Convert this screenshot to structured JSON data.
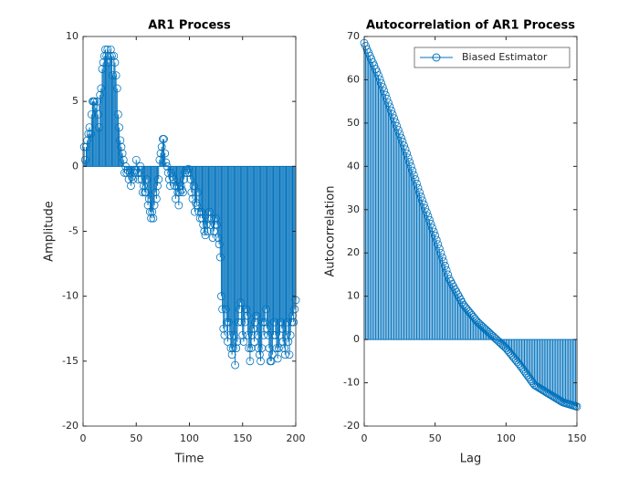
{
  "chart_data": [
    {
      "type": "stem",
      "title": "AR1 Process",
      "xlabel": "Time",
      "ylabel": "Amplitude",
      "xlim": [
        0,
        200
      ],
      "ylim": [
        -20,
        10
      ],
      "xticks": [
        0,
        50,
        100,
        150,
        200
      ],
      "yticks": [
        -20,
        -15,
        -10,
        -5,
        0,
        5,
        10
      ],
      "x": [
        1,
        2,
        3,
        4,
        5,
        6,
        7,
        8,
        9,
        10,
        11,
        12,
        13,
        14,
        15,
        16,
        17,
        18,
        19,
        20,
        21,
        22,
        23,
        24,
        25,
        26,
        27,
        28,
        29,
        30,
        31,
        32,
        33,
        34,
        35,
        36,
        37,
        38,
        39,
        40,
        41,
        42,
        43,
        44,
        45,
        46,
        47,
        48,
        49,
        50,
        51,
        52,
        53,
        54,
        55,
        56,
        57,
        58,
        59,
        60,
        61,
        62,
        63,
        64,
        65,
        66,
        67,
        68,
        69,
        70,
        71,
        72,
        73,
        74,
        75,
        76,
        77,
        78,
        79,
        80,
        81,
        82,
        83,
        84,
        85,
        86,
        87,
        88,
        89,
        90,
        91,
        92,
        93,
        94,
        95,
        96,
        97,
        98,
        99,
        100,
        101,
        102,
        103,
        104,
        105,
        106,
        107,
        108,
        109,
        110,
        111,
        112,
        113,
        114,
        115,
        116,
        117,
        118,
        119,
        120,
        121,
        122,
        123,
        124,
        125,
        126,
        127,
        128,
        129,
        130,
        131,
        132,
        133,
        134,
        135,
        136,
        137,
        138,
        139,
        140,
        141,
        142,
        143,
        144,
        145,
        146,
        147,
        148,
        149,
        150,
        151,
        152,
        153,
        154,
        155,
        156,
        157,
        158,
        159,
        160,
        161,
        162,
        163,
        164,
        165,
        166,
        167,
        168,
        169,
        170,
        171,
        172,
        173,
        174,
        175,
        176,
        177,
        178,
        179,
        180,
        181,
        182,
        183,
        184,
        185,
        186,
        187,
        188,
        189,
        190,
        191,
        192,
        193,
        194,
        195,
        196,
        197,
        198,
        199,
        200
      ],
      "series": [
        {
          "color": "#0072bd",
          "values": [
            1.5,
            0.5,
            1.5,
            2,
            2.5,
            3,
            2.5,
            4,
            5,
            5,
            5,
            4.5,
            5,
            4,
            3,
            5.5,
            6,
            7.5,
            8,
            8.5,
            9,
            8.5,
            9,
            8,
            8.5,
            9,
            8.5,
            7,
            8.5,
            8,
            7,
            6,
            4,
            3,
            2,
            1.5,
            1,
            0.5,
            -0.5,
            0,
            -0.5,
            -0.3,
            -1,
            -0.5,
            -1.5,
            -0.8,
            -1,
            -0.5,
            -0.3,
            0.5,
            -0.5,
            -1,
            -0.5,
            0,
            -1,
            -2,
            -1.5,
            -2,
            -2,
            -1,
            -3,
            -2.5,
            -3.5,
            -4,
            -3.5,
            -4,
            -3,
            -2,
            -2.5,
            -1.5,
            -1,
            0.5,
            1,
            1.5,
            2.1,
            2.1,
            1,
            0.3,
            0,
            -0.5,
            -1,
            -1.5,
            -0.5,
            -0.8,
            -1,
            -1.5,
            -2.5,
            -1.5,
            -2,
            -3,
            -2,
            -1.5,
            -1.8,
            -2,
            -1,
            -0.5,
            -0.3,
            -0.5,
            -0.2,
            -0.5,
            -1,
            -2,
            -2.5,
            -1.5,
            -3.5,
            -2.8,
            -3,
            -2,
            -3.5,
            -4,
            -3.5,
            -4,
            -4.5,
            -5,
            -5.3,
            -4.5,
            -5,
            -4,
            -3.5,
            -4.5,
            -4,
            -5.5,
            -5,
            -4.5,
            -4,
            -4.5,
            -5.5,
            -6,
            -7,
            -10,
            -11,
            -12.5,
            -13,
            -11,
            -12,
            -13.5,
            -12,
            -13,
            -14,
            -14.5,
            -14,
            -13,
            -15.3,
            -14,
            -13.5,
            -12,
            -11,
            -10.5,
            -12,
            -13,
            -13.5,
            -12,
            -11,
            -11.5,
            -13,
            -14,
            -15,
            -14,
            -13,
            -12.5,
            -13.5,
            -12,
            -11.5,
            -13,
            -14,
            -14.5,
            -15,
            -14,
            -12,
            -13,
            -12,
            -11,
            -12.5,
            -13,
            -14,
            -15,
            -15,
            -14.5,
            -13,
            -12,
            -13,
            -14,
            -14.8,
            -14,
            -13,
            -12,
            -12.5,
            -13.5,
            -14,
            -14.5,
            -13,
            -12,
            -13.5,
            -14.5,
            -13,
            -12,
            -11.5,
            -12,
            -11,
            -10.3
          ]
        }
      ]
    },
    {
      "type": "stem",
      "title": "Autocorrelation of AR1 Process",
      "xlabel": "Lag",
      "ylabel": "Autocorrelation",
      "xlim": [
        0,
        150
      ],
      "ylim": [
        -20,
        70
      ],
      "xticks": [
        0,
        50,
        100,
        150
      ],
      "yticks": [
        -20,
        -10,
        0,
        10,
        20,
        30,
        40,
        50,
        60,
        70
      ],
      "legend": "northeast",
      "x": [
        0,
        1,
        2,
        3,
        4,
        5,
        6,
        7,
        8,
        9,
        10,
        11,
        12,
        13,
        14,
        15,
        16,
        17,
        18,
        19,
        20,
        21,
        22,
        23,
        24,
        25,
        26,
        27,
        28,
        29,
        30,
        31,
        32,
        33,
        34,
        35,
        36,
        37,
        38,
        39,
        40,
        41,
        42,
        43,
        44,
        45,
        46,
        47,
        48,
        49,
        50,
        51,
        52,
        53,
        54,
        55,
        56,
        57,
        58,
        59,
        60,
        61,
        62,
        63,
        64,
        65,
        66,
        67,
        68,
        69,
        70,
        71,
        72,
        73,
        74,
        75,
        76,
        77,
        78,
        79,
        80,
        81,
        82,
        83,
        84,
        85,
        86,
        87,
        88,
        89,
        90,
        91,
        92,
        93,
        94,
        95,
        96,
        97,
        98,
        99,
        100,
        101,
        102,
        103,
        104,
        105,
        106,
        107,
        108,
        109,
        110,
        111,
        112,
        113,
        114,
        115,
        116,
        117,
        118,
        119,
        120,
        121,
        122,
        123,
        124,
        125,
        126,
        127,
        128,
        129,
        130,
        131,
        132,
        133,
        134,
        135,
        136,
        137,
        138,
        139,
        140,
        141,
        142,
        143,
        144,
        145,
        146,
        147,
        148,
        149,
        150
      ],
      "series": [
        {
          "name": "Biased Estimator",
          "color": "#0072bd",
          "values": [
            68.5,
            67.8,
            67,
            66.3,
            65.5,
            64.8,
            64,
            63.3,
            62.5,
            61.8,
            61,
            60.1,
            59.2,
            58.3,
            57.4,
            56.5,
            55.6,
            54.7,
            53.8,
            52.9,
            52,
            51.1,
            50.2,
            49.3,
            48.4,
            47.5,
            46.6,
            45.7,
            44.8,
            43.9,
            43,
            42,
            41,
            40,
            39,
            38,
            37,
            36,
            35,
            34,
            33,
            32.1,
            31.2,
            30.3,
            29.4,
            28.5,
            27.6,
            26.7,
            25.8,
            24.9,
            24,
            23,
            22,
            21,
            20,
            19,
            18,
            17,
            16,
            15,
            14,
            13.4,
            12.8,
            12.2,
            11.6,
            11,
            10.4,
            9.8,
            9.2,
            8.6,
            8,
            7.6,
            7.2,
            6.8,
            6.4,
            6,
            5.6,
            5.2,
            4.8,
            4.4,
            4,
            3.7,
            3.4,
            3.1,
            2.8,
            2.5,
            2.2,
            1.9,
            1.6,
            1.3,
            1,
            0.7,
            0.4,
            0.1,
            -0.2,
            -0.5,
            -0.8,
            -1.1,
            -1.4,
            -1.7,
            -2,
            -2.4,
            -2.8,
            -3.2,
            -3.6,
            -4,
            -4.4,
            -4.8,
            -5.2,
            -5.6,
            -6,
            -6.45,
            -6.9,
            -7.35,
            -7.8,
            -8.25,
            -8.7,
            -9.15,
            -9.6,
            -10.05,
            -10.5,
            -10.7,
            -10.9,
            -11.1,
            -11.3,
            -11.5,
            -11.7,
            -11.9,
            -12.1,
            -12.3,
            -12.5,
            -12.7,
            -12.9,
            -13.1,
            -13.3,
            -13.5,
            -13.7,
            -13.9,
            -14.1,
            -14.3,
            -14.5,
            -14.6,
            -14.7,
            -14.8,
            -14.9,
            -15,
            -15.1,
            -15.2,
            -15.3,
            -15.4,
            -15.5
          ]
        }
      ]
    }
  ]
}
